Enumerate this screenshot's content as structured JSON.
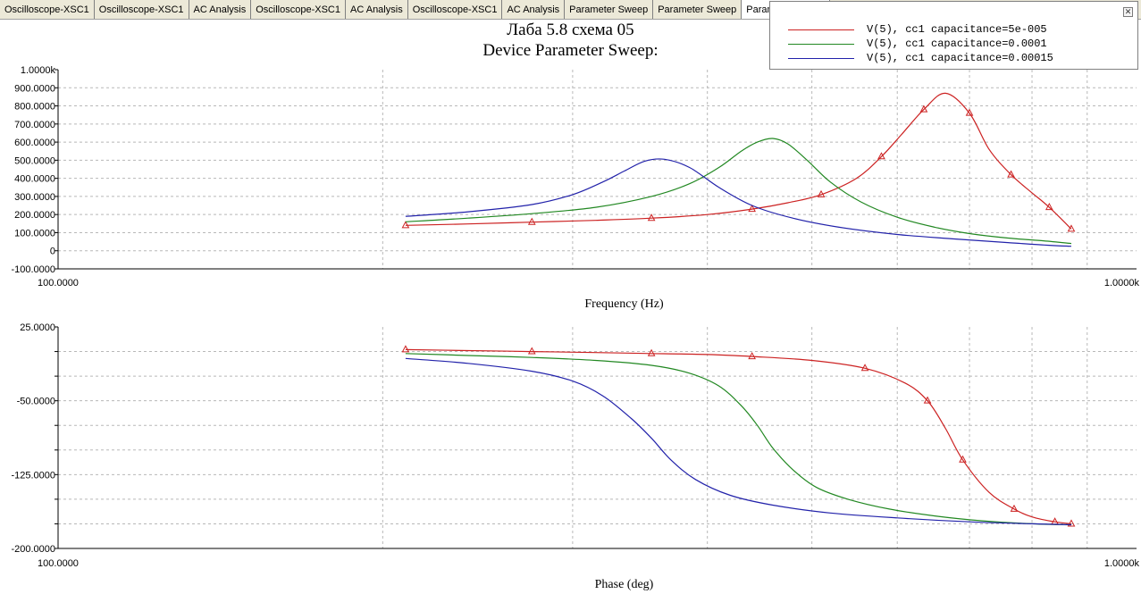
{
  "tabs": [
    "Oscilloscope-XSC1",
    "Oscilloscope-XSC1",
    "AC Analysis",
    "Oscilloscope-XSC1",
    "AC Analysis",
    "Oscilloscope-XSC1",
    "AC Analysis",
    "Parameter Sweep",
    "Parameter Sweep",
    "Parameter Sweep"
  ],
  "active_tab": 9,
  "title": "Лаба 5.8 схема 05",
  "subtitle": "Device Parameter Sweep:",
  "legend": [
    {
      "label": "V(5), cc1 capacitance=5e-005",
      "color": "#cc2222"
    },
    {
      "label": "V(5), cc1 capacitance=0.0001",
      "color": "#228822"
    },
    {
      "label": "V(5), cc1 capacitance=0.00015",
      "color": "#2222aa"
    }
  ],
  "chart_data": [
    {
      "type": "line",
      "xlabel": "Frequency (Hz)",
      "ylabel": "",
      "x_scale": "log",
      "xlim": [
        100,
        1000
      ],
      "x_tick_labels": [
        "100.0000",
        "1.0000k"
      ],
      "ylim": [
        -100,
        1000
      ],
      "y_tick_labels": [
        "-100.0000",
        "0",
        "100.0000",
        "200.0000",
        "300.0000",
        "400.0000",
        "500.0000",
        "600.0000",
        "700.0000",
        "800.0000",
        "900.0000",
        "1.0000k"
      ],
      "grid": true,
      "series": [
        {
          "name": "V(5), cc1 capacitance=5e-005",
          "color": "#cc2222",
          "markers": true,
          "x": [
            210,
            240,
            275,
            315,
            355,
            400,
            440,
            475,
            510,
            550,
            580,
            605,
            635,
            665,
            700,
            730,
            765,
            800,
            830,
            870
          ],
          "y": [
            140,
            148,
            158,
            168,
            180,
            200,
            230,
            265,
            310,
            400,
            520,
            640,
            780,
            870,
            760,
            560,
            420,
            320,
            240,
            120
          ]
        },
        {
          "name": "V(5), cc1 capacitance=0.0001",
          "color": "#228822",
          "markers": false,
          "x": [
            210,
            240,
            275,
            315,
            355,
            385,
            410,
            430,
            445,
            460,
            475,
            495,
            520,
            555,
            600,
            650,
            700,
            760,
            820,
            870
          ],
          "y": [
            160,
            180,
            205,
            240,
            300,
            370,
            460,
            550,
            600,
            620,
            590,
            500,
            380,
            270,
            185,
            130,
            95,
            70,
            55,
            40
          ]
        },
        {
          "name": "V(5), cc1 capacitance=0.00015",
          "color": "#2222aa",
          "markers": false,
          "x": [
            210,
            240,
            275,
            300,
            320,
            335,
            350,
            365,
            385,
            410,
            440,
            480,
            530,
            600,
            680,
            760,
            830,
            870
          ],
          "y": [
            190,
            215,
            255,
            310,
            380,
            440,
            495,
            505,
            460,
            350,
            250,
            180,
            130,
            90,
            65,
            45,
            30,
            25
          ]
        }
      ]
    },
    {
      "type": "line",
      "xlabel": "Phase (deg)",
      "ylabel": "",
      "x_scale": "log",
      "xlim": [
        100,
        1000
      ],
      "x_tick_labels": [
        "100.0000",
        "1.0000k"
      ],
      "ylim": [
        -200,
        25
      ],
      "y_tick_labels": [
        "-200.0000",
        "-125.0000",
        "-50.0000",
        "25.0000"
      ],
      "grid": true,
      "series": [
        {
          "name": "V(5), cc1 capacitance=5e-005",
          "color": "#cc2222",
          "markers": true,
          "x": [
            210,
            240,
            275,
            315,
            355,
            400,
            440,
            500,
            560,
            610,
            640,
            665,
            690,
            730,
            770,
            800,
            840,
            870
          ],
          "y": [
            2,
            1,
            0,
            -1,
            -2,
            -3,
            -5,
            -9,
            -17,
            -32,
            -50,
            -78,
            -110,
            -143,
            -160,
            -168,
            -173,
            -175
          ]
        },
        {
          "name": "V(5), cc1 capacitance=0.0001",
          "color": "#228822",
          "markers": false,
          "x": [
            210,
            240,
            275,
            315,
            355,
            385,
            410,
            430,
            445,
            460,
            480,
            505,
            540,
            590,
            650,
            720,
            800,
            870
          ],
          "y": [
            -2,
            -4,
            -6,
            -9,
            -14,
            -22,
            -35,
            -55,
            -75,
            -98,
            -120,
            -138,
            -150,
            -160,
            -167,
            -172,
            -175,
            -176
          ]
        },
        {
          "name": "V(5), cc1 capacitance=0.00015",
          "color": "#2222aa",
          "markers": false,
          "x": [
            210,
            240,
            275,
            300,
            320,
            340,
            355,
            370,
            390,
            420,
            460,
            520,
            600,
            700,
            800,
            870
          ],
          "y": [
            -7,
            -12,
            -20,
            -30,
            -45,
            -68,
            -88,
            -110,
            -130,
            -146,
            -156,
            -164,
            -169,
            -173,
            -175,
            -176
          ]
        }
      ]
    }
  ]
}
